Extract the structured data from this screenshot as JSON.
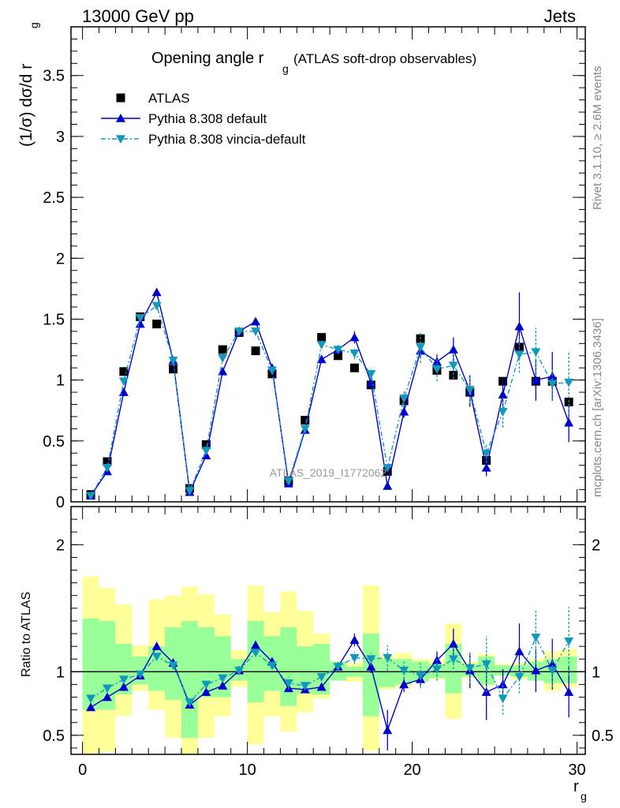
{
  "header": {
    "left": "13000 GeV pp",
    "right": "Jets"
  },
  "title": {
    "main": "Opening angle r",
    "main_sub": "g",
    "suffix": "(ATLAS soft-drop observables)"
  },
  "side_texts": {
    "rivet": "Rivet 3.1.10, ≥ 2.6M events",
    "mcplots": "mcplots.cern.ch [arXiv:1306.3436]"
  },
  "watermark": "ATLAS_2019_I1772062",
  "colors": {
    "atlas": "#000000",
    "default": "#0000cc",
    "vincia": "#1199bb",
    "band_inner": "#99ff99",
    "band_outer": "#ffff99"
  },
  "chart_data": [
    {
      "type": "line",
      "panel": "main",
      "ylabel": "(1/σ) dσ/d r",
      "ylabel_sub": "g",
      "ylim": [
        0,
        3.9
      ],
      "xlim": [
        -0.7,
        30.5
      ],
      "yticks": [
        "0",
        "0.5",
        "1",
        "1.5",
        "2",
        "2.5",
        "3",
        "3.5"
      ],
      "legend_position": "top-left",
      "x": [
        0.5,
        1.5,
        2.5,
        3.5,
        4.5,
        5.5,
        6.5,
        7.5,
        8.5,
        9.5,
        10.5,
        11.5,
        12.5,
        13.5,
        14.5,
        15.5,
        16.5,
        17.5,
        18.5,
        19.5,
        20.5,
        21.5,
        22.5,
        23.5,
        24.5,
        25.5,
        26.5,
        27.5,
        28.5,
        29.5
      ],
      "series": [
        {
          "name": "ATLAS",
          "marker": "square",
          "values": [
            0.06,
            0.33,
            1.07,
            1.52,
            1.46,
            1.09,
            0.11,
            0.47,
            1.25,
            1.39,
            1.24,
            1.05,
            0.17,
            0.67,
            1.35,
            1.2,
            1.1,
            0.96,
            0.25,
            0.83,
            1.34,
            1.08,
            1.04,
            0.9,
            0.34,
            0.99,
            1.27,
            0.99,
            0.99,
            0.82
          ]
        },
        {
          "name": "Pythia 8.308 default",
          "marker": "triangle-up",
          "values": [
            0.05,
            0.25,
            0.9,
            1.46,
            1.72,
            1.16,
            0.08,
            0.38,
            1.07,
            1.4,
            1.48,
            1.1,
            0.15,
            0.59,
            1.17,
            1.25,
            1.35,
            0.98,
            0.13,
            0.74,
            1.24,
            1.15,
            1.25,
            0.91,
            0.28,
            0.88,
            1.44,
            1.0,
            1.03,
            0.65
          ],
          "errors": [
            0.02,
            0.02,
            0.03,
            0.03,
            0.03,
            0.03,
            0.01,
            0.02,
            0.03,
            0.03,
            0.03,
            0.03,
            0.01,
            0.02,
            0.03,
            0.03,
            0.05,
            0.05,
            0.02,
            0.05,
            0.06,
            0.06,
            0.1,
            0.13,
            0.07,
            0.12,
            0.28,
            0.17,
            0.2,
            0.16
          ]
        },
        {
          "name": "Pythia 8.308 vincia-default",
          "marker": "triangle-down",
          "values": [
            0.05,
            0.28,
            0.99,
            1.51,
            1.61,
            1.16,
            0.09,
            0.42,
            1.18,
            1.4,
            1.4,
            1.08,
            0.17,
            0.6,
            1.29,
            1.25,
            1.22,
            1.05,
            0.28,
            0.85,
            1.27,
            1.09,
            1.12,
            0.92,
            0.4,
            0.74,
            1.21,
            1.23,
            0.97,
            0.98
          ],
          "errors": [
            0.02,
            0.02,
            0.03,
            0.03,
            0.03,
            0.03,
            0.01,
            0.02,
            0.03,
            0.03,
            0.03,
            0.03,
            0.01,
            0.02,
            0.03,
            0.03,
            0.05,
            0.05,
            0.03,
            0.06,
            0.13,
            0.1,
            0.11,
            0.11,
            0.08,
            0.13,
            0.15,
            0.2,
            0.13,
            0.26
          ]
        }
      ]
    },
    {
      "type": "line",
      "panel": "ratio",
      "ylabel": "Ratio to ATLAS",
      "xlabel": "r",
      "xlabel_sub": "g",
      "ylim": [
        0.35,
        2.3
      ],
      "xlim": [
        -0.7,
        30.5
      ],
      "xticks": [
        "0",
        "10",
        "20",
        "30"
      ],
      "yticks": [
        "0.5",
        "1",
        "2"
      ],
      "x": [
        0.5,
        1.5,
        2.5,
        3.5,
        4.5,
        5.5,
        6.5,
        7.5,
        8.5,
        9.5,
        10.5,
        11.5,
        12.5,
        13.5,
        14.5,
        15.5,
        16.5,
        17.5,
        18.5,
        19.5,
        20.5,
        21.5,
        22.5,
        23.5,
        24.5,
        25.5,
        26.5,
        27.5,
        28.5,
        29.5
      ],
      "band_inner": [
        [
          0.7,
          1.42
        ],
        [
          0.7,
          1.4
        ],
        [
          0.82,
          1.22
        ],
        [
          0.9,
          1.12
        ],
        [
          0.85,
          1.2
        ],
        [
          0.78,
          1.35
        ],
        [
          0.48,
          1.4
        ],
        [
          0.8,
          1.35
        ],
        [
          0.8,
          1.28
        ],
        [
          0.93,
          1.1
        ],
        [
          0.76,
          1.4
        ],
        [
          0.85,
          1.28
        ],
        [
          0.73,
          1.35
        ],
        [
          0.83,
          1.2
        ],
        [
          0.82,
          1.22
        ],
        [
          0.93,
          1.08
        ],
        [
          0.96,
          1.04
        ],
        [
          0.65,
          1.3
        ],
        [
          0.88,
          1.1
        ],
        [
          0.9,
          1.1
        ],
        [
          0.92,
          1.08
        ],
        [
          0.95,
          1.06
        ],
        [
          0.83,
          1.22
        ],
        [
          0.96,
          1.06
        ],
        [
          0.9,
          1.12
        ],
        [
          0.97,
          1.05
        ],
        [
          0.96,
          1.05
        ],
        [
          0.93,
          1.08
        ],
        [
          0.91,
          1.1
        ],
        [
          0.91,
          1.12
        ]
      ],
      "band_outer": [
        [
          0.35,
          1.75
        ],
        [
          0.37,
          1.66
        ],
        [
          0.65,
          1.53
        ],
        [
          0.85,
          1.21
        ],
        [
          0.7,
          1.57
        ],
        [
          0.48,
          1.6
        ],
        [
          0.35,
          1.67
        ],
        [
          0.48,
          1.61
        ],
        [
          0.65,
          1.45
        ],
        [
          0.88,
          1.17
        ],
        [
          0.43,
          1.68
        ],
        [
          0.65,
          1.47
        ],
        [
          0.53,
          1.63
        ],
        [
          0.68,
          1.48
        ],
        [
          0.79,
          1.3
        ],
        [
          0.93,
          1.08
        ],
        [
          0.92,
          1.07
        ],
        [
          0.38,
          1.68
        ],
        [
          0.86,
          1.13
        ],
        [
          0.88,
          1.15
        ],
        [
          0.92,
          1.1
        ],
        [
          0.94,
          1.09
        ],
        [
          0.63,
          1.38
        ],
        [
          0.95,
          1.08
        ],
        [
          0.89,
          1.14
        ],
        [
          0.97,
          1.06
        ],
        [
          0.94,
          1.07
        ],
        [
          0.93,
          1.1
        ],
        [
          0.85,
          1.16
        ],
        [
          0.88,
          1.18
        ]
      ],
      "series": [
        {
          "name": "Pythia 8.308 default",
          "marker": "triangle-up",
          "values": [
            0.72,
            0.8,
            0.88,
            0.97,
            1.2,
            1.07,
            0.74,
            0.84,
            0.89,
            1.01,
            1.21,
            1.08,
            0.87,
            0.86,
            0.88,
            1.04,
            1.25,
            1.04,
            0.54,
            0.9,
            0.94,
            1.09,
            1.22,
            1.01,
            0.84,
            0.9,
            1.16,
            1.01,
            1.06,
            0.84
          ],
          "errors": [
            0.02,
            0.02,
            0.02,
            0.02,
            0.03,
            0.03,
            0.02,
            0.02,
            0.02,
            0.02,
            0.03,
            0.03,
            0.02,
            0.02,
            0.02,
            0.02,
            0.05,
            0.05,
            0.16,
            0.06,
            0.05,
            0.07,
            0.12,
            0.14,
            0.22,
            0.12,
            0.22,
            0.17,
            0.2,
            0.2
          ]
        },
        {
          "name": "Pythia 8.308 vincia-default",
          "marker": "triangle-down",
          "values": [
            0.79,
            0.87,
            0.94,
            0.98,
            1.12,
            1.05,
            0.76,
            0.9,
            0.95,
            1.01,
            1.15,
            1.05,
            0.91,
            0.89,
            0.96,
            1.04,
            1.11,
            1.1,
            1.11,
            1.01,
            0.97,
            1.02,
            1.1,
            1.03,
            1.06,
            0.79,
            0.96,
            1.27,
            1.01,
            1.24
          ],
          "errors": [
            0.02,
            0.02,
            0.02,
            0.02,
            0.03,
            0.03,
            0.02,
            0.02,
            0.02,
            0.02,
            0.03,
            0.03,
            0.05,
            0.03,
            0.02,
            0.02,
            0.05,
            0.05,
            0.1,
            0.07,
            0.1,
            0.09,
            0.11,
            0.12,
            0.22,
            0.13,
            0.13,
            0.21,
            0.13,
            0.27
          ]
        }
      ]
    }
  ]
}
